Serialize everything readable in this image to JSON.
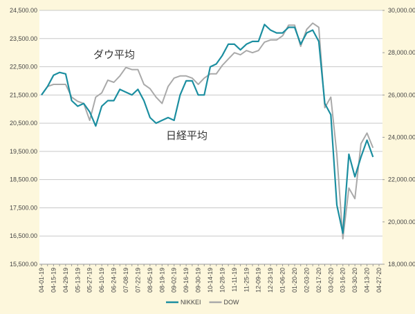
{
  "chart_data": {
    "type": "line",
    "annotations": [
      "ダウ平均",
      "日経平均"
    ],
    "categories": [
      "04-01-19",
      null,
      "04-15-19",
      null,
      "04-29-19",
      null,
      "05-13-19",
      null,
      "05-27-19",
      null,
      "06-10-19",
      null,
      "06-24-19",
      null,
      "07-08-19",
      null,
      "07-22-19",
      null,
      "08-05-19",
      null,
      "08-19-19",
      null,
      "09-02-19",
      null,
      "09-16-19",
      null,
      "09-30-19",
      null,
      "10-14-19",
      null,
      "10-28-19",
      null,
      "11-11-19",
      null,
      "11-25-19",
      null,
      "12-09-19",
      null,
      "12-23-19",
      null,
      "01-06-20",
      null,
      "01-20-20",
      null,
      "02-03-20",
      null,
      "02-17-20",
      null,
      "03-02-20",
      null,
      "03-16-20",
      null,
      "03-30-20",
      null,
      "04-13-20",
      null,
      "04-27-20"
    ],
    "series": [
      {
        "name": "NIKKEI",
        "color": "#1b8ea0",
        "values": [
          21500,
          21800,
          22200,
          22300,
          22250,
          21300,
          21100,
          21200,
          20900,
          20400,
          21100,
          21300,
          21300,
          21700,
          21600,
          21500,
          21700,
          21300,
          20700,
          20500,
          20600,
          20700,
          20600,
          21500,
          22000,
          22000,
          21500,
          21500,
          22500,
          22600,
          22900,
          23300,
          23300,
          23100,
          23300,
          23400,
          23400,
          24000,
          23800,
          23700,
          23700,
          23900,
          23900,
          23300,
          23700,
          23800,
          23400,
          21200,
          20800,
          17600,
          16600,
          19400,
          18600,
          19300,
          19900,
          19300,
          null
        ]
      },
      {
        "name": "DOW",
        "color": "#a9a9a9",
        "axis": "y2",
        "values": [
          26000,
          26400,
          26500,
          26500,
          26500,
          25900,
          25700,
          25600,
          24800,
          25900,
          26100,
          26700,
          26600,
          26900,
          27300,
          27200,
          27200,
          26500,
          26300,
          25900,
          25600,
          26400,
          26800,
          26900,
          26900,
          26800,
          26500,
          26800,
          27000,
          27000,
          27400,
          27700,
          28000,
          27900,
          28100,
          28000,
          28100,
          28500,
          28600,
          28600,
          28800,
          29300,
          29300,
          28300,
          29100,
          29400,
          29200,
          25400,
          25900,
          23200,
          19200,
          21600,
          21100,
          23700,
          24200,
          23500,
          null
        ]
      }
    ],
    "ylim": [
      15500,
      24500
    ],
    "yticks": [
      {
        "value": 15500,
        "label": "15,500.00"
      },
      {
        "value": 16500,
        "label": "16,500.00"
      },
      {
        "value": 17500,
        "label": "17,500.00"
      },
      {
        "value": 18500,
        "label": "18,500.00"
      },
      {
        "value": 19500,
        "label": "19,500.00"
      },
      {
        "value": 20500,
        "label": "20,500.00"
      },
      {
        "value": 21500,
        "label": "21,500.00"
      },
      {
        "value": 22500,
        "label": "22,500.00"
      },
      {
        "value": 23500,
        "label": "23,500.00"
      },
      {
        "value": 24500,
        "label": "24,500.00"
      }
    ],
    "y2lim": [
      18000,
      30000
    ],
    "y2ticks": [
      {
        "value": 18000,
        "label": "18,000.00"
      },
      {
        "value": 20000,
        "label": "20,000.00"
      },
      {
        "value": 22000,
        "label": "22,000.00"
      },
      {
        "value": 24000,
        "label": "24,000.00"
      },
      {
        "value": 26000,
        "label": "26,000.00"
      },
      {
        "value": 28000,
        "label": "28,000.00"
      },
      {
        "value": 30000,
        "label": "30,000.00"
      }
    ],
    "grid": true,
    "legend": "bottom"
  }
}
